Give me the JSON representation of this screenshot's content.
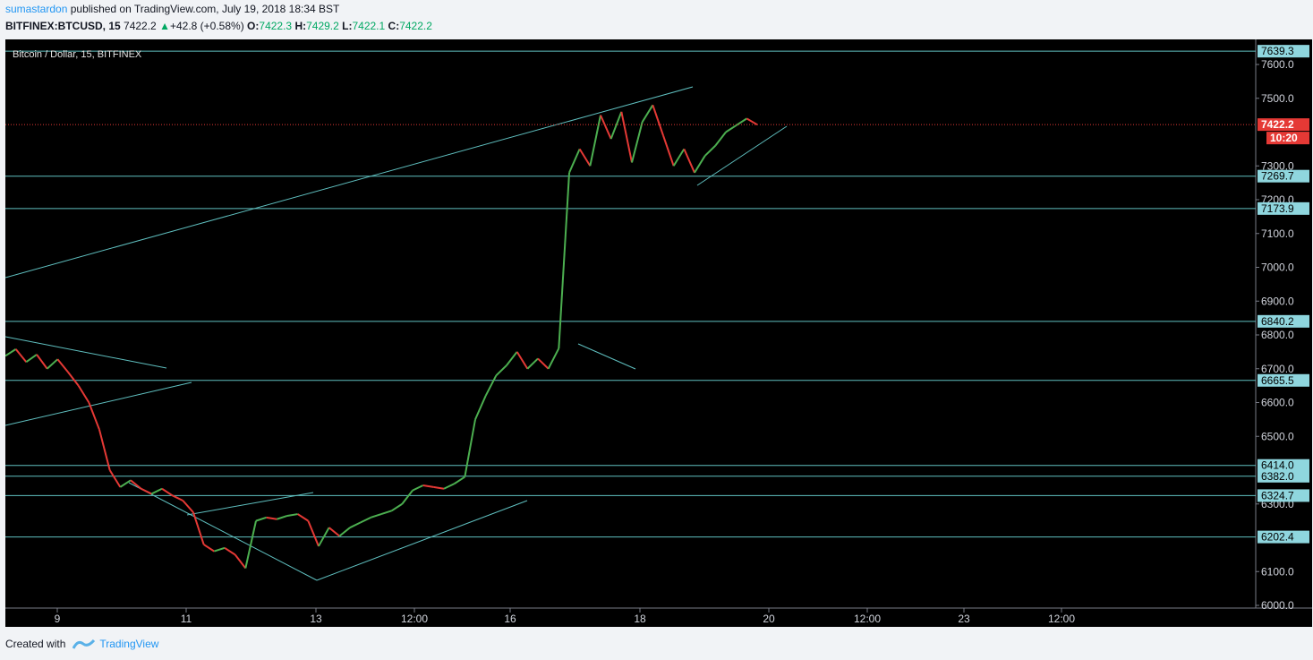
{
  "header": {
    "author": "sumastardon",
    "published_text": "published on TradingView.com, July 19, 2018 18:34 BST",
    "symbol": "BITFINEX:BTCUSD, 15",
    "last": "7422.2",
    "change": "+42.8 (+0.58%)",
    "o_label": "O:",
    "o_value": "7422.3",
    "h_label": "H:",
    "h_value": "7429.2",
    "l_label": "L:",
    "l_value": "7422.1",
    "c_label": "C:",
    "c_value": "7422.2"
  },
  "chart_title": "Bitcoin / Dollar, 15, BITFINEX",
  "footer": {
    "created_with": "Created with",
    "brand": "TradingView"
  },
  "colors": {
    "background": "#000000",
    "candle_up": "#4caf50",
    "candle_down": "#e53935",
    "lines": "#5fbfbf",
    "current_price": "#e53935"
  },
  "chart_data": {
    "type": "line",
    "y_range": [
      6000,
      7680
    ],
    "y_ticks": [
      6000.0,
      6100.0,
      6200.0,
      6300.0,
      6400.0,
      6500.0,
      6600.0,
      6700.0,
      6800.0,
      6900.0,
      7000.0,
      7100.0,
      7200.0,
      7300.0,
      7400.0,
      7500.0,
      7600.0
    ],
    "x_ticks": [
      "9",
      "11",
      "13",
      "12:00",
      "16",
      "18",
      "20",
      "12:00",
      "23",
      "12:00"
    ],
    "levels": [
      7639.3,
      7269.7,
      7173.9,
      6840.2,
      6665.5,
      6414.0,
      6382.0,
      6324.7,
      6202.4
    ],
    "current_price": 7422.2,
    "countdown": "10:20",
    "price_path": [
      6738,
      6758,
      6720,
      6742,
      6700,
      6728,
      6690,
      6650,
      6600,
      6520,
      6400,
      6350,
      6370,
      6345,
      6330,
      6345,
      6325,
      6310,
      6275,
      6180,
      6160,
      6170,
      6150,
      6110,
      6250,
      6260,
      6255,
      6265,
      6270,
      6250,
      6175,
      6230,
      6205,
      6230,
      6245,
      6260,
      6270,
      6280,
      6300,
      6340,
      6355,
      6350,
      6345,
      6360,
      6380,
      6550,
      6620,
      6680,
      6710,
      6750,
      6700,
      6730,
      6700,
      6760,
      7280,
      7350,
      7300,
      7450,
      7380,
      7460,
      7310,
      7430,
      7480,
      7390,
      7300,
      7350,
      7280,
      7330,
      7360,
      7400,
      7420,
      7440,
      7422
    ]
  }
}
